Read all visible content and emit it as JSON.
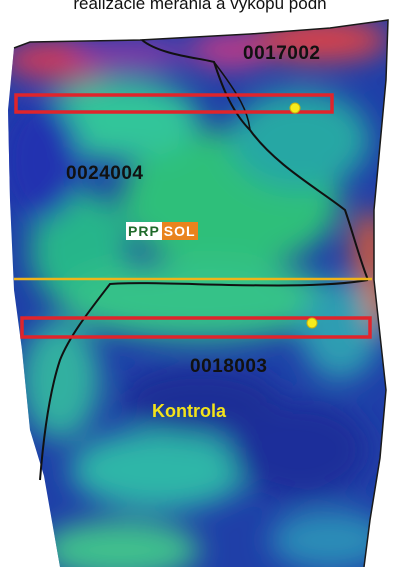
{
  "header": {
    "text": "realizácie merania a výkopu pôdn"
  },
  "parcels": [
    {
      "id": "0017002"
    },
    {
      "id": "0024004"
    },
    {
      "id": "0018003"
    }
  ],
  "control": {
    "label": "Kontrola",
    "color": "#f2e31a"
  },
  "logo": {
    "part1": "PRP",
    "part2": "SOL",
    "color1": "#1f6a2a",
    "color2": "#e9831d"
  },
  "strips": {
    "color": "#e0242b"
  },
  "divider_line": {
    "color": "#f0b51a"
  },
  "sample_points": {
    "color": "#f6ec1c"
  }
}
